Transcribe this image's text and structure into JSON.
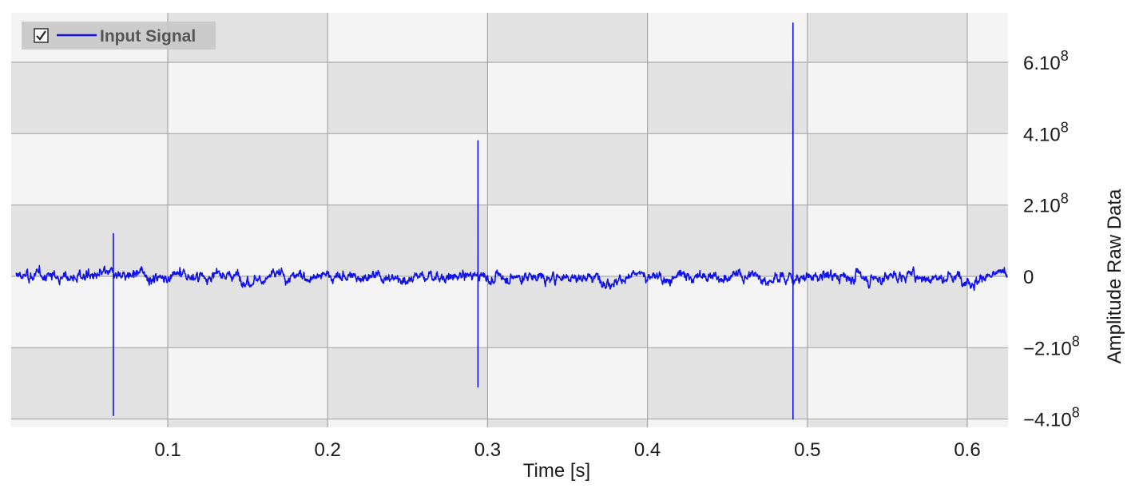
{
  "chart_data": {
    "type": "line",
    "xlabel": "Time [s]",
    "ylabel": "Amplitude Raw Data",
    "xlim": [
      0.005,
      0.63
    ],
    "ylim": [
      -440000000.0,
      750000000.0
    ],
    "x_ticks": [
      {
        "value": 0.1,
        "label": "0.1"
      },
      {
        "value": 0.2,
        "label": "0.2"
      },
      {
        "value": 0.3,
        "label": "0.3"
      },
      {
        "value": 0.4,
        "label": "0.4"
      },
      {
        "value": 0.5,
        "label": "0.5"
      },
      {
        "value": 0.6,
        "label": "0.6"
      }
    ],
    "y_ticks": [
      {
        "value": 600000000,
        "base": "6.10",
        "exp": "8"
      },
      {
        "value": 400000000,
        "base": "4.10",
        "exp": "8"
      },
      {
        "value": 200000000,
        "base": "2.10",
        "exp": "8"
      },
      {
        "value": 0,
        "base": "0",
        "exp": ""
      },
      {
        "value": -200000000,
        "base": "−2.10",
        "exp": "8"
      },
      {
        "value": -400000000,
        "base": "−4.10",
        "exp": "8"
      }
    ],
    "grid": true,
    "legend_position": "top-left",
    "series": [
      {
        "name": "Input Signal",
        "color": "#1010e8",
        "legend_checked": true,
        "noise_amplitude": 110000000,
        "x_range": [
          0.005,
          0.625
        ],
        "spikes": [
          {
            "x": 0.066,
            "y_min": -390000000,
            "y_max": 120000000
          },
          {
            "x": 0.294,
            "y_min": -310000000,
            "y_max": 380000000
          },
          {
            "x": 0.491,
            "y_min": -400000000,
            "y_max": 710000000
          }
        ]
      }
    ]
  },
  "legend": {
    "checkbox_glyph": "☑",
    "label": "Input Signal"
  }
}
